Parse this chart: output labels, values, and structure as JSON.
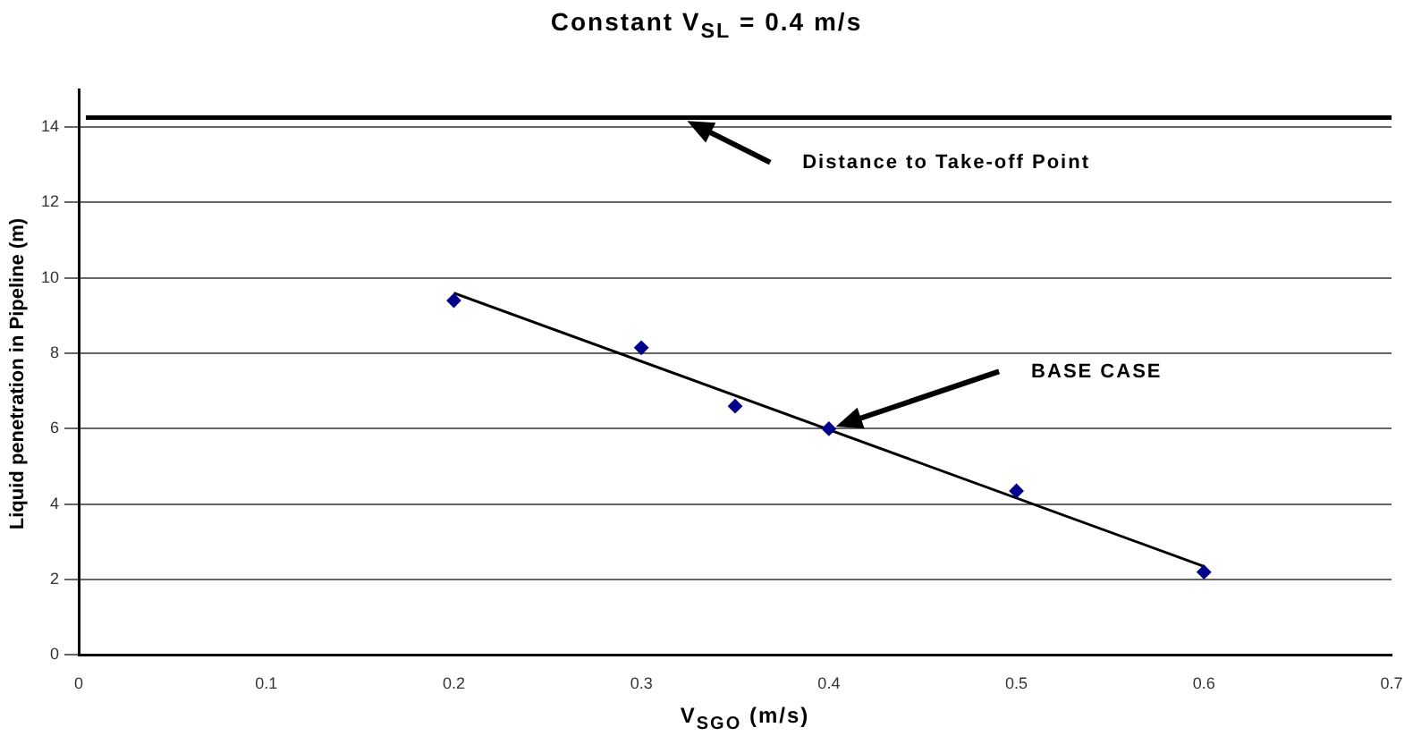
{
  "chart_data": {
    "type": "scatter",
    "title": "Constant V$_{SL}$ = 0.4 m/s",
    "xlabel": "V$_{SGO}$ (m/s)",
    "ylabel": "Liquid penetration in Pipeline (m)",
    "xlim": [
      0,
      0.7
    ],
    "xticks": [
      0,
      0.1,
      0.2,
      0.3,
      0.4,
      0.5,
      0.6,
      0.7
    ],
    "ylim": [
      0,
      15
    ],
    "yticks": [
      0,
      2,
      4,
      6,
      8,
      10,
      12,
      14
    ],
    "grid": "y",
    "legend": false,
    "marker": "diamond",
    "series": [
      {
        "color": "#00008b",
        "x": [
          0.2,
          0.3,
          0.35,
          0.4,
          0.5,
          0.6
        ],
        "values": [
          9.4,
          8.15,
          6.6,
          6.0,
          4.35,
          2.2
        ]
      },
      {
        "type": "line",
        "color": "#000000",
        "marker": "none",
        "x": [
          0.2,
          0.6
        ],
        "values": [
          9.6,
          2.35
        ]
      }
    ],
    "ref_lines": [
      {
        "axis": "y",
        "value": 14.25,
        "color": "#000000"
      }
    ],
    "annotations": [
      "Distance to Take-off Point",
      "BASE CASE"
    ]
  }
}
